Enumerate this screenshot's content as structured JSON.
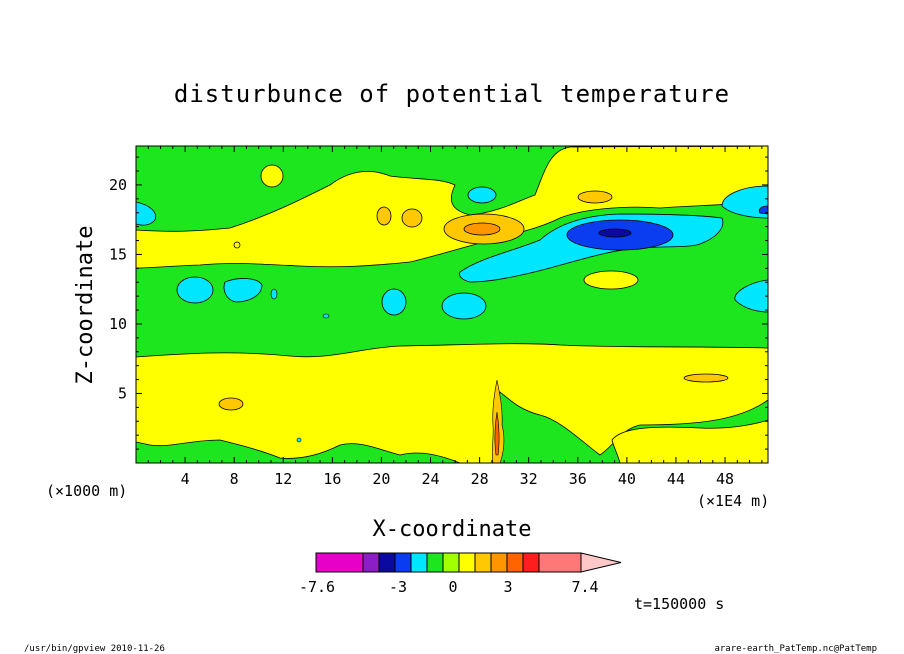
{
  "chart_data": {
    "type": "heatmap",
    "title": "disturbunce of potential temperature",
    "xlabel": "X-coordinate",
    "ylabel": "Z-coordinate",
    "x_unit_left": "(×1000 m)",
    "x_unit_right": "(×1E4 m)",
    "xlim": [
      0,
      51.5
    ],
    "ylim": [
      0,
      22.8
    ],
    "xticks": [
      4,
      8,
      12,
      16,
      20,
      24,
      28,
      32,
      36,
      40,
      44,
      48
    ],
    "yticks": [
      5,
      10,
      15,
      20
    ],
    "time_label": "t=150000 s",
    "colorbar": {
      "colors": [
        "#e600c8",
        "#8c1ec8",
        "#0a0aa0",
        "#0a3cf0",
        "#00e6ff",
        "#1ee61e",
        "#a0ff00",
        "#ffff00",
        "#ffc800",
        "#ff9600",
        "#ff6400",
        "#ff1e1e",
        "#ff7878",
        "#ffc8c8"
      ],
      "tick_labels": [
        "-7.6",
        "-3",
        "0",
        "3",
        "7.4"
      ]
    }
  },
  "footer": {
    "left": "/usr/bin/gpview   2010-11-26",
    "right": "arare-earth_PatTemp.nc@PatTemp"
  }
}
